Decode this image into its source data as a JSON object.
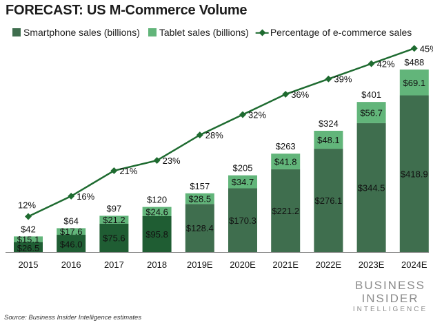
{
  "chart_data": {
    "type": "bar",
    "title": "FORECAST: US M-Commerce Volume",
    "categories": [
      "2015",
      "2016",
      "2017",
      "2018",
      "2019E",
      "2020E",
      "2021E",
      "2022E",
      "2023E",
      "2024E"
    ],
    "series": [
      {
        "name": "Smartphone sales (billions)",
        "values": [
          26.5,
          46.0,
          75.6,
          95.8,
          128.4,
          170.3,
          221.2,
          276.1,
          344.5,
          418.9
        ],
        "labels": [
          "$26.5",
          "$46.0",
          "$75.6",
          "$95.8",
          "$128.4",
          "$170.3",
          "$221.2",
          "$276.1",
          "$344.5",
          "$418.9"
        ]
      },
      {
        "name": "Tablet sales (billions)",
        "values": [
          15.1,
          17.6,
          21.2,
          24.6,
          28.5,
          34.7,
          41.8,
          48.1,
          56.7,
          69.1
        ],
        "labels": [
          "$15.1",
          "$17.6",
          "$21.2",
          "$24.6",
          "$28.5",
          "$34.7",
          "$41.8",
          "$48.1",
          "$56.7",
          "$69.1"
        ]
      },
      {
        "name": "Percentage of e-commerce sales",
        "type": "line",
        "values": [
          12,
          16,
          21,
          23,
          28,
          32,
          36,
          39,
          42,
          45
        ],
        "labels": [
          "12%",
          "16%",
          "21%",
          "23%",
          "28%",
          "32%",
          "36%",
          "39%",
          "42%",
          "45%"
        ]
      }
    ],
    "totals": [
      "$42",
      "$64",
      "$97",
      "$120",
      "$157",
      "$205",
      "$263",
      "$324",
      "$401",
      "$488"
    ],
    "colors": {
      "smartphone_actual": "#1f5d33",
      "smartphone_estimate": "#3f6e4e",
      "tablet": "#62b57a",
      "line": "#1e6b30"
    }
  },
  "source": "Source: Business Insider Intelligence estimates",
  "brand": {
    "line1": "BUSINESS",
    "line2": "INSIDER",
    "line3": "INTELLIGENCE"
  }
}
